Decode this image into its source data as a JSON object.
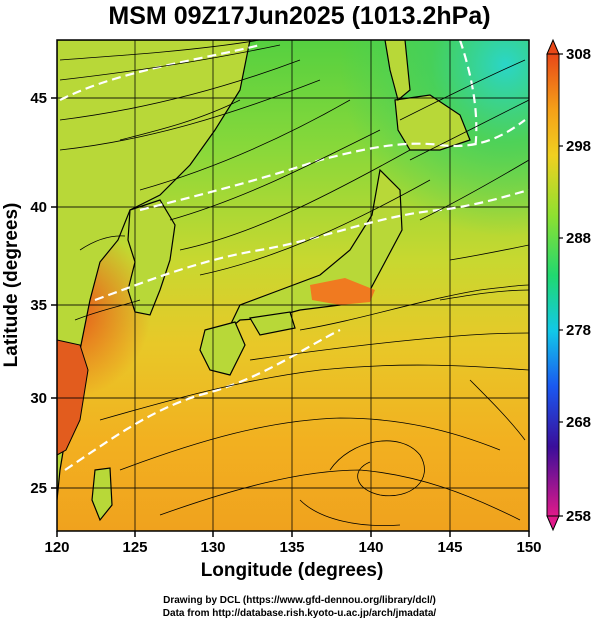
{
  "title": "MSM 09Z17Jun2025 (1013.2hPa)",
  "x_axis": {
    "label": "Longitude (degrees)",
    "ticks": [
      "120",
      "125",
      "130",
      "135",
      "140",
      "145",
      "150"
    ],
    "range": [
      120,
      150
    ]
  },
  "y_axis": {
    "label": "Latitude  (degrees)",
    "ticks": [
      "25",
      "30",
      "35",
      "40",
      "45"
    ],
    "range": [
      22.5,
      47.5
    ]
  },
  "colorbar": {
    "labels": [
      "308",
      "298",
      "288",
      "278",
      "268",
      "258"
    ],
    "range": [
      258,
      308
    ],
    "colors": [
      "#e01a8a",
      "#3a0e9a",
      "#1a58f0",
      "#12c8e8",
      "#20d870",
      "#8ee030",
      "#f0d020",
      "#f5a018",
      "#e84818"
    ]
  },
  "credits": {
    "line1": "Drawing by DCL (https://www.gfd-dennou.org/library/dcl/)",
    "line2": "Data from http://database.rish.kyoto-u.ac.jp/arch/jmadata/"
  }
}
